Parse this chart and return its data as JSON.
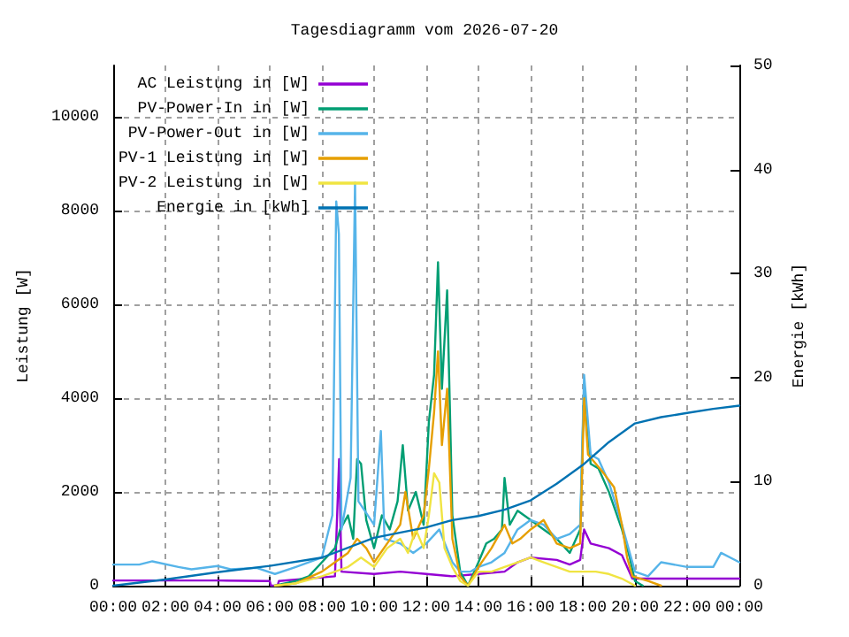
{
  "chart_data": {
    "type": "line",
    "title": "Tagesdiagramm vom 2026-07-20",
    "ylabel": "Leistung [W]",
    "y2label": "Energie [kWh]",
    "xlim": [
      0,
      24
    ],
    "xticks": [
      {
        "value": 0,
        "label": "00:00"
      },
      {
        "value": 2,
        "label": "02:00"
      },
      {
        "value": 4,
        "label": "04:00"
      },
      {
        "value": 6,
        "label": "06:00"
      },
      {
        "value": 8,
        "label": "08:00"
      },
      {
        "value": 10,
        "label": "10:00"
      },
      {
        "value": 12,
        "label": "12:00"
      },
      {
        "value": 14,
        "label": "14:00"
      },
      {
        "value": 16,
        "label": "16:00"
      },
      {
        "value": 18,
        "label": "18:00"
      },
      {
        "value": 20,
        "label": "20:00"
      },
      {
        "value": 22,
        "label": "22:00"
      },
      {
        "value": 24,
        "label": "00:00"
      }
    ],
    "ylim": [
      0,
      11100
    ],
    "yticks": [
      0,
      2000,
      4000,
      6000,
      8000,
      10000
    ],
    "y2lim": [
      0,
      50
    ],
    "y2ticks": [
      0,
      10,
      20,
      30,
      40,
      50
    ],
    "grid": true,
    "legend": "top left",
    "marker": "none",
    "line_style": "solid",
    "series": [
      {
        "name": "AC Leistung in [W]",
        "color": "#9400d3",
        "x": [
          0,
          2,
          4,
          6,
          6.05,
          6.3,
          6.35,
          8.5,
          8.66,
          8.75,
          10,
          11,
          12,
          13,
          14,
          15,
          15.5,
          16,
          17,
          17.5,
          17.9,
          18.05,
          18.3,
          19,
          19.5,
          19.9,
          20.5,
          22,
          24
        ],
        "values": [
          110,
          110,
          110,
          100,
          0,
          0,
          100,
          200,
          2700,
          300,
          250,
          300,
          250,
          200,
          250,
          300,
          500,
          600,
          550,
          450,
          550,
          1200,
          900,
          800,
          650,
          150,
          150,
          150,
          150
        ]
      },
      {
        "name": "PV-Power-In in [W]",
        "color": "#009e73",
        "x": [
          6.2,
          7,
          7.5,
          8,
          8.5,
          8.7,
          9,
          9.2,
          9.35,
          9.5,
          9.7,
          10,
          10.3,
          10.6,
          10.9,
          11.1,
          11.3,
          11.6,
          11.9,
          12.1,
          12.3,
          12.45,
          12.6,
          12.8,
          13,
          13.3,
          13.6,
          14,
          14.3,
          14.6,
          14.9,
          15,
          15.2,
          15.5,
          16,
          16.5,
          17,
          17.5,
          17.9,
          18.05,
          18.3,
          18.6,
          19,
          19.5,
          19.8,
          20,
          20.3
        ],
        "values": [
          0,
          100,
          200,
          500,
          800,
          1200,
          1500,
          1000,
          2700,
          2600,
          1400,
          800,
          1500,
          1200,
          1800,
          3000,
          1600,
          2000,
          1300,
          3500,
          4500,
          6900,
          4200,
          6300,
          1500,
          300,
          0,
          500,
          900,
          1000,
          1200,
          2300,
          1300,
          1600,
          1400,
          1200,
          1000,
          700,
          1200,
          4300,
          2600,
          2500,
          2000,
          1200,
          600,
          100,
          0
        ]
      },
      {
        "name": "PV-Power-Out in [W]",
        "color": "#56b4e9",
        "x": [
          0,
          1,
          1.5,
          2.5,
          3,
          4,
          4.5,
          5.5,
          6.2,
          7,
          8,
          8.4,
          8.55,
          8.65,
          8.75,
          9.1,
          9.27,
          9.4,
          10,
          10.26,
          10.4,
          11,
          11.5,
          12,
          12.5,
          13,
          13.3,
          13.7,
          14,
          14.5,
          15,
          15.5,
          16,
          16.5,
          17,
          17.5,
          17.9,
          18.05,
          18.3,
          18.6,
          19,
          19.5,
          20,
          20.5,
          21,
          22,
          23,
          23.3,
          24
        ],
        "values": [
          450,
          450,
          520,
          400,
          350,
          420,
          350,
          380,
          250,
          400,
          600,
          1500,
          8200,
          7500,
          1200,
          2300,
          8600,
          1800,
          1300,
          3300,
          1000,
          900,
          700,
          900,
          1200,
          500,
          300,
          300,
          400,
          500,
          700,
          1200,
          1400,
          1300,
          1000,
          1100,
          1300,
          4500,
          2800,
          2700,
          2200,
          1300,
          300,
          200,
          500,
          400,
          400,
          700,
          500
        ]
      },
      {
        "name": "PV-1 Leistung in [W]",
        "color": "#e69f00",
        "x": [
          6.2,
          7,
          8,
          8.5,
          9,
          9.35,
          9.7,
          10,
          10.5,
          11,
          11.2,
          11.5,
          11.9,
          12.1,
          12.3,
          12.45,
          12.6,
          12.8,
          13,
          13.3,
          13.6,
          14,
          14.5,
          15,
          15.3,
          15.6,
          16,
          16.5,
          17,
          17.5,
          17.9,
          18.05,
          18.2,
          18.5,
          18.8,
          19.2,
          19.5,
          19.7,
          19.9,
          20.5,
          21
        ],
        "values": [
          0,
          50,
          300,
          500,
          700,
          1000,
          800,
          500,
          900,
          1300,
          2000,
          1000,
          1500,
          2500,
          3700,
          5000,
          3000,
          4200,
          1000,
          200,
          0,
          400,
          800,
          1300,
          900,
          1000,
          1200,
          1400,
          900,
          800,
          900,
          4000,
          2800,
          2600,
          2400,
          2100,
          1300,
          600,
          200,
          100,
          0
        ]
      },
      {
        "name": "PV-2 Leistung in [W]",
        "color": "#f0e442",
        "x": [
          6.2,
          7,
          8,
          9,
          9.5,
          10,
          10.5,
          11,
          11.3,
          11.6,
          11.9,
          12.1,
          12.3,
          12.5,
          12.7,
          13,
          13.3,
          13.6,
          14,
          14.5,
          15,
          15.5,
          16,
          16.5,
          17,
          17.5,
          18,
          18.5,
          19,
          19.5,
          20
        ],
        "values": [
          0,
          50,
          200,
          400,
          600,
          400,
          800,
          1000,
          700,
          1200,
          800,
          1500,
          2400,
          2200,
          800,
          400,
          100,
          0,
          300,
          300,
          400,
          500,
          600,
          500,
          400,
          300,
          300,
          300,
          250,
          150,
          0
        ]
      },
      {
        "name": "Energie in [kWh]",
        "color": "#0072b2",
        "axis": "y2",
        "x": [
          0,
          2,
          4,
          6,
          8,
          10,
          12,
          13,
          14,
          15,
          16,
          17,
          18,
          19,
          20,
          21,
          22,
          23,
          24
        ],
        "values": [
          0,
          0.6,
          1.3,
          1.9,
          2.7,
          4.6,
          5.6,
          6.3,
          6.7,
          7.3,
          8.2,
          9.8,
          11.6,
          13.8,
          15.6,
          16.2,
          16.6,
          17,
          17.3
        ]
      }
    ]
  }
}
